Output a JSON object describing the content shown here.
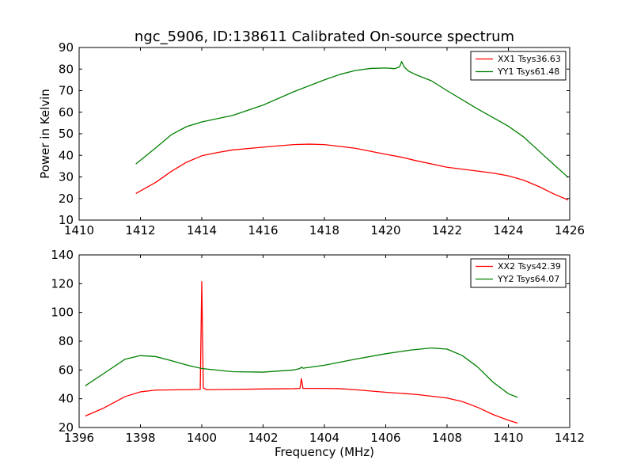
{
  "chart_data": [
    {
      "type": "line",
      "title": "ngc_5906, ID:138611 Calibrated On-source spectrum",
      "xlabel": "",
      "ylabel": "Power in Kelvin",
      "xlim": [
        1410,
        1426
      ],
      "ylim": [
        10,
        90
      ],
      "xticks": [
        1410,
        1412,
        1414,
        1416,
        1418,
        1420,
        1422,
        1424,
        1426
      ],
      "yticks": [
        10,
        20,
        30,
        40,
        50,
        60,
        70,
        80,
        90
      ],
      "legend_position": "top-right",
      "series": [
        {
          "name": "XX1 Tsys36.63",
          "color": "#ff0000",
          "points": [
            [
              1411.85,
              22.3
            ],
            [
              1412.5,
              27.5
            ],
            [
              1413.0,
              32.5
            ],
            [
              1413.5,
              36.8
            ],
            [
              1414.0,
              39.8
            ],
            [
              1414.5,
              41.3
            ],
            [
              1415.0,
              42.5
            ],
            [
              1416.0,
              43.8
            ],
            [
              1417.0,
              45.0
            ],
            [
              1417.5,
              45.2
            ],
            [
              1418.0,
              45.0
            ],
            [
              1419.0,
              43.3
            ],
            [
              1420.0,
              40.5
            ],
            [
              1420.5,
              39.2
            ],
            [
              1421.0,
              37.5
            ],
            [
              1422.0,
              34.5
            ],
            [
              1423.0,
              32.7
            ],
            [
              1423.5,
              31.8
            ],
            [
              1424.0,
              30.5
            ],
            [
              1424.5,
              28.5
            ],
            [
              1425.0,
              25.5
            ],
            [
              1425.5,
              22.0
            ],
            [
              1425.95,
              19.3
            ]
          ]
        },
        {
          "name": "YY1 Tsys61.48",
          "color": "#008000",
          "points": [
            [
              1411.85,
              36.0
            ],
            [
              1412.5,
              43.5
            ],
            [
              1413.0,
              49.5
            ],
            [
              1413.5,
              53.3
            ],
            [
              1414.0,
              55.5
            ],
            [
              1415.0,
              58.5
            ],
            [
              1416.0,
              63.3
            ],
            [
              1417.0,
              69.5
            ],
            [
              1418.0,
              75.0
            ],
            [
              1418.5,
              77.5
            ],
            [
              1419.0,
              79.3
            ],
            [
              1419.5,
              80.3
            ],
            [
              1420.0,
              80.5
            ],
            [
              1420.3,
              80.2
            ],
            [
              1420.45,
              81.0
            ],
            [
              1420.52,
              83.5
            ],
            [
              1420.6,
              81.0
            ],
            [
              1420.75,
              79.0
            ],
            [
              1421.0,
              77.3
            ],
            [
              1421.5,
              74.5
            ],
            [
              1422.0,
              70.0
            ],
            [
              1423.0,
              61.5
            ],
            [
              1424.0,
              53.5
            ],
            [
              1424.5,
              48.5
            ],
            [
              1425.0,
              42.0
            ],
            [
              1425.5,
              35.5
            ],
            [
              1425.95,
              29.8
            ]
          ]
        }
      ]
    },
    {
      "type": "line",
      "title": "",
      "xlabel": "Frequency (MHz)",
      "ylabel": "",
      "xlim": [
        1396,
        1412
      ],
      "ylim": [
        20,
        140
      ],
      "xticks": [
        1396,
        1398,
        1400,
        1402,
        1404,
        1406,
        1408,
        1410,
        1412
      ],
      "yticks": [
        20,
        40,
        60,
        80,
        100,
        120,
        140
      ],
      "legend_position": "top-right",
      "series": [
        {
          "name": "XX2 Tsys42.39",
          "color": "#ff0000",
          "points": [
            [
              1396.2,
              28.0
            ],
            [
              1396.8,
              33.5
            ],
            [
              1397.5,
              41.5
            ],
            [
              1398.0,
              44.8
            ],
            [
              1398.5,
              46.0
            ],
            [
              1399.5,
              46.3
            ],
            [
              1399.95,
              46.5
            ],
            [
              1400.0,
              121.5
            ],
            [
              1400.05,
              47.5
            ],
            [
              1400.15,
              46.3
            ],
            [
              1401.0,
              46.5
            ],
            [
              1402.0,
              46.8
            ],
            [
              1403.0,
              47.0
            ],
            [
              1403.2,
              47.2
            ],
            [
              1403.25,
              54.0
            ],
            [
              1403.3,
              47.2
            ],
            [
              1404.0,
              47.2
            ],
            [
              1404.5,
              47.0
            ],
            [
              1405.0,
              46.3
            ],
            [
              1406.0,
              44.5
            ],
            [
              1407.0,
              43.0
            ],
            [
              1408.0,
              40.5
            ],
            [
              1408.5,
              38.0
            ],
            [
              1409.0,
              34.0
            ],
            [
              1409.5,
              29.0
            ],
            [
              1410.0,
              25.0
            ],
            [
              1410.3,
              23.0
            ]
          ]
        },
        {
          "name": "YY2 Tsys64.07",
          "color": "#008000",
          "points": [
            [
              1396.2,
              49.0
            ],
            [
              1396.8,
              57.5
            ],
            [
              1397.5,
              67.5
            ],
            [
              1398.0,
              70.0
            ],
            [
              1398.5,
              69.3
            ],
            [
              1399.0,
              66.5
            ],
            [
              1399.5,
              63.5
            ],
            [
              1400.0,
              61.0
            ],
            [
              1401.0,
              58.8
            ],
            [
              1402.0,
              58.5
            ],
            [
              1403.0,
              60.0
            ],
            [
              1403.2,
              61.0
            ],
            [
              1403.25,
              62.0
            ],
            [
              1403.3,
              61.2
            ],
            [
              1404.0,
              63.3
            ],
            [
              1405.0,
              67.5
            ],
            [
              1406.0,
              71.3
            ],
            [
              1406.8,
              73.8
            ],
            [
              1407.5,
              75.3
            ],
            [
              1408.0,
              74.5
            ],
            [
              1408.5,
              70.0
            ],
            [
              1409.0,
              62.0
            ],
            [
              1409.5,
              51.5
            ],
            [
              1410.0,
              43.5
            ],
            [
              1410.3,
              41.0
            ]
          ]
        }
      ]
    }
  ]
}
